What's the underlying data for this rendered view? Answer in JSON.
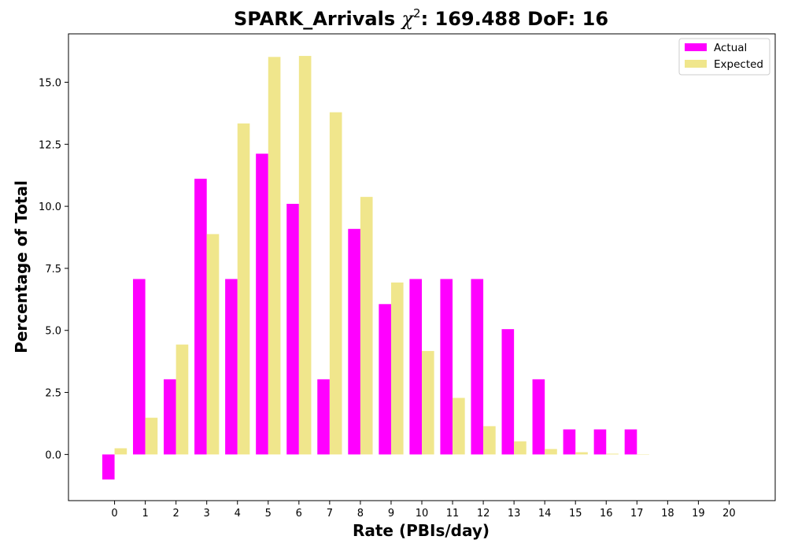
{
  "chart_data": {
    "type": "bar",
    "title": "SPARK_Arrivals χ²: 169.488 DoF: 16",
    "title_parts": {
      "prefix": "SPARK_Arrivals ",
      "chi": "χ",
      "sup": "2",
      "suffix": ": 169.488 DoF: 16"
    },
    "xlabel": "Rate (PBIs/day)",
    "ylabel": "Percentage of Total",
    "xlim": [
      -1.5,
      21.5
    ],
    "ylim": [
      -1.86,
      16.95
    ],
    "x_ticks": [
      0,
      1,
      2,
      3,
      4,
      5,
      6,
      7,
      8,
      9,
      10,
      11,
      12,
      13,
      14,
      15,
      16,
      17,
      18,
      19,
      20
    ],
    "y_ticks": [
      0.0,
      2.5,
      5.0,
      7.5,
      10.0,
      12.5,
      15.0
    ],
    "y_tick_labels": [
      "0.0",
      "2.5",
      "5.0",
      "7.5",
      "10.0",
      "12.5",
      "15.0"
    ],
    "bar_width": 0.4,
    "legend": {
      "placement": "top-right",
      "entries": [
        "Actual",
        "Expected"
      ]
    },
    "series": [
      {
        "name": "Actual",
        "color": "#ff00ff",
        "offset": -0.2,
        "x": [
          0,
          1,
          2,
          3,
          4,
          5,
          6,
          7,
          8,
          9,
          10,
          11,
          12,
          13,
          14,
          15,
          16,
          17
        ],
        "values": [
          -1.01,
          7.07,
          3.03,
          11.11,
          7.07,
          12.12,
          10.1,
          3.03,
          9.09,
          6.06,
          7.07,
          7.07,
          7.07,
          5.05,
          3.03,
          1.01,
          1.01,
          1.01
        ]
      },
      {
        "name": "Expected",
        "color": "#f0e68c",
        "offset": 0.2,
        "x": [
          0,
          1,
          2,
          3,
          4,
          5,
          6,
          7,
          8,
          9,
          10,
          11,
          12,
          13,
          14,
          15,
          16,
          17
        ],
        "values": [
          0.25,
          1.48,
          4.43,
          8.88,
          13.34,
          16.02,
          16.06,
          13.79,
          10.38,
          6.93,
          4.17,
          2.28,
          1.14,
          0.53,
          0.22,
          0.09,
          0.03,
          0.01
        ]
      }
    ]
  }
}
